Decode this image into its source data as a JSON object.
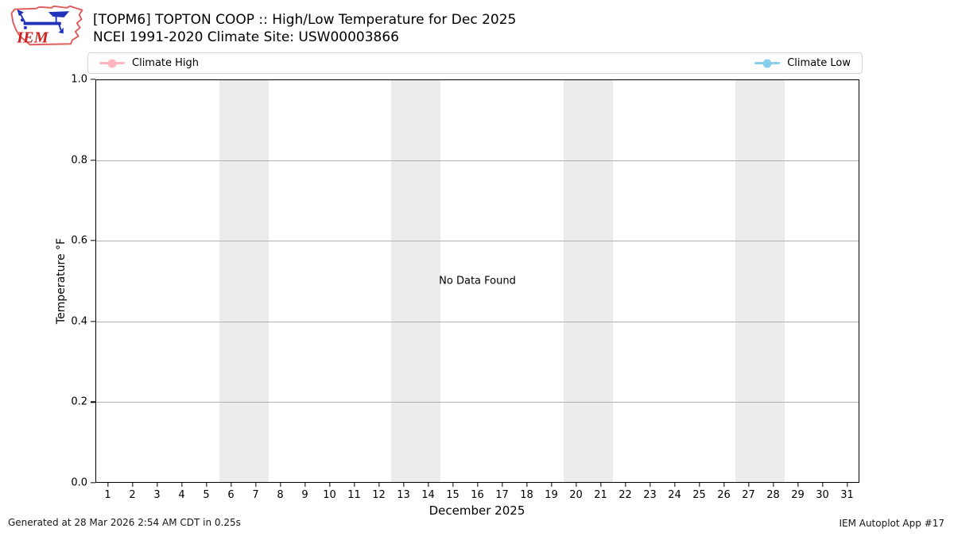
{
  "header": {
    "title": "[TOPM6] TOPTON COOP :: High/Low Temperature for Dec 2025",
    "subtitle": "NCEI 1991-2020 Climate Site: USW00003866",
    "logo_text": "IEM"
  },
  "legend": {
    "items": [
      {
        "label": "Climate High",
        "color": "#ffb6c1"
      },
      {
        "label": "Climate Low",
        "color": "#87ceeb"
      }
    ]
  },
  "chart_data": {
    "type": "line",
    "title": "[TOPM6] TOPTON COOP :: High/Low Temperature for Dec 2025",
    "subtitle": "NCEI 1991-2020 Climate Site: USW00003866",
    "xlabel": "December 2025",
    "ylabel": "Temperature °F",
    "no_data_text": "No Data Found",
    "xlim": [
      0.5,
      31.5
    ],
    "ylim": [
      0.0,
      1.0
    ],
    "xticks": [
      1,
      2,
      3,
      4,
      5,
      6,
      7,
      8,
      9,
      10,
      11,
      12,
      13,
      14,
      15,
      16,
      17,
      18,
      19,
      20,
      21,
      22,
      23,
      24,
      25,
      26,
      27,
      28,
      29,
      30,
      31
    ],
    "yticks": [
      "0.0",
      "0.2",
      "0.4",
      "0.6",
      "0.8",
      "1.0"
    ],
    "grid": true,
    "grid_color": "#b0b0b0",
    "legend_position": "top, spanning plot width",
    "series": [
      {
        "name": "Climate High",
        "color": "#ffb6c1",
        "values": []
      },
      {
        "name": "Climate Low",
        "color": "#87ceeb",
        "values": []
      }
    ],
    "weekend_bands": [
      [
        5.5,
        7.5
      ],
      [
        12.5,
        14.5
      ],
      [
        19.5,
        21.5
      ],
      [
        26.5,
        28.5
      ]
    ],
    "band_color": "#ececec"
  },
  "footer": {
    "left": "Generated at 28 Mar 2026 2:54 AM CDT in 0.25s",
    "right": "IEM Autoplot App #17"
  }
}
